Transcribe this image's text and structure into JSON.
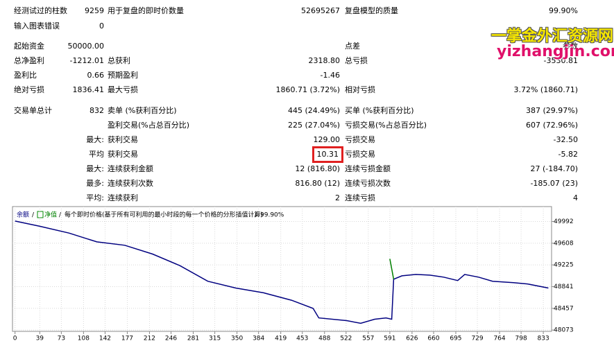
{
  "report": {
    "rows": [
      [
        "经测试过的柱数",
        "9259",
        "用于复盘的即时价数量",
        "52695267",
        "复盘模型的质量",
        "99.90%"
      ],
      [
        "输入图表错误",
        "0",
        null,
        null,
        null,
        null
      ],
      [
        "起始资金",
        "50000.00",
        null,
        null,
        "点差",
        "参数"
      ],
      [
        "总净盈利",
        "-1212.01",
        "总获利",
        "2318.80",
        "总亏损",
        "-3530.81"
      ],
      [
        "盈利比",
        "0.66",
        "预期盈利",
        "-1.46",
        null,
        null
      ],
      [
        "绝对亏损",
        "1836.41",
        "最大亏损",
        "1860.71 (3.72%)",
        "相对亏损",
        "3.72% (1860.71)"
      ],
      [
        "交易单总计",
        "832",
        "卖单 (%获利百分比)",
        "445 (24.49%)",
        "买单 (%获利百分比)",
        "387 (29.97%)"
      ],
      [
        null,
        null,
        "盈利交易(%占总百分比)",
        "225 (27.04%)",
        "亏损交易(%占总百分比)",
        "607 (72.96%)"
      ],
      [
        "最大:",
        null,
        "获利交易",
        "129.00",
        "亏损交易",
        "-32.50"
      ],
      [
        "平均",
        null,
        "获利交易",
        "10.31",
        "亏损交易",
        "-5.82"
      ],
      [
        "最大:",
        null,
        "连续获利金额",
        "12 (816.80)",
        "连续亏损金额",
        "27 (-184.70)"
      ],
      [
        "最多:",
        null,
        "连续获利次数",
        "816.80 (12)",
        "连续亏损次数",
        "-185.07 (23)"
      ],
      [
        "平均:",
        null,
        "连续获利",
        "2",
        "连续亏损",
        "4"
      ]
    ]
  },
  "watermark": {
    "line1": "一掌金外汇资源网",
    "line2": "yizhangjin.com"
  },
  "chart_data": {
    "type": "line",
    "title": "每个即时价格(基于所有可利用的最小时段的每一个价格的分形插值计算)",
    "subtitle": "99.90%",
    "series": [
      {
        "name": "余额",
        "color": "#000080",
        "x": [
          0,
          39,
          85,
          129,
          173,
          217,
          260,
          304,
          348,
          392,
          436,
          470,
          479,
          523,
          545,
          567,
          585,
          594,
          597,
          610,
          632,
          654,
          676,
          698,
          709,
          731,
          753,
          786,
          808,
          841
        ],
        "values": [
          50000,
          49908,
          49788,
          49632,
          49572,
          49416,
          49212,
          48936,
          48816,
          48732,
          48600,
          48456,
          48288,
          48240,
          48192,
          48264,
          48288,
          48264,
          48972,
          49032,
          49056,
          49044,
          49008,
          48948,
          49056,
          49008,
          48936,
          48912,
          48888,
          48816
        ]
      },
      {
        "name": "净值",
        "color": "#008000",
        "x": [
          591,
          597
        ],
        "values": [
          49332,
          48972
        ]
      }
    ],
    "xlim": [
      -4,
      846
    ],
    "xticks": [
      0,
      39,
      73,
      108,
      142,
      177,
      212,
      246,
      281,
      315,
      350,
      384,
      419,
      453,
      488,
      522,
      557,
      591,
      626,
      660,
      695,
      729,
      764,
      798,
      833
    ],
    "ylim": [
      48050,
      50256
    ],
    "yticks": [
      48073,
      48457,
      48841,
      49225,
      49608,
      49992
    ],
    "grid": true
  }
}
